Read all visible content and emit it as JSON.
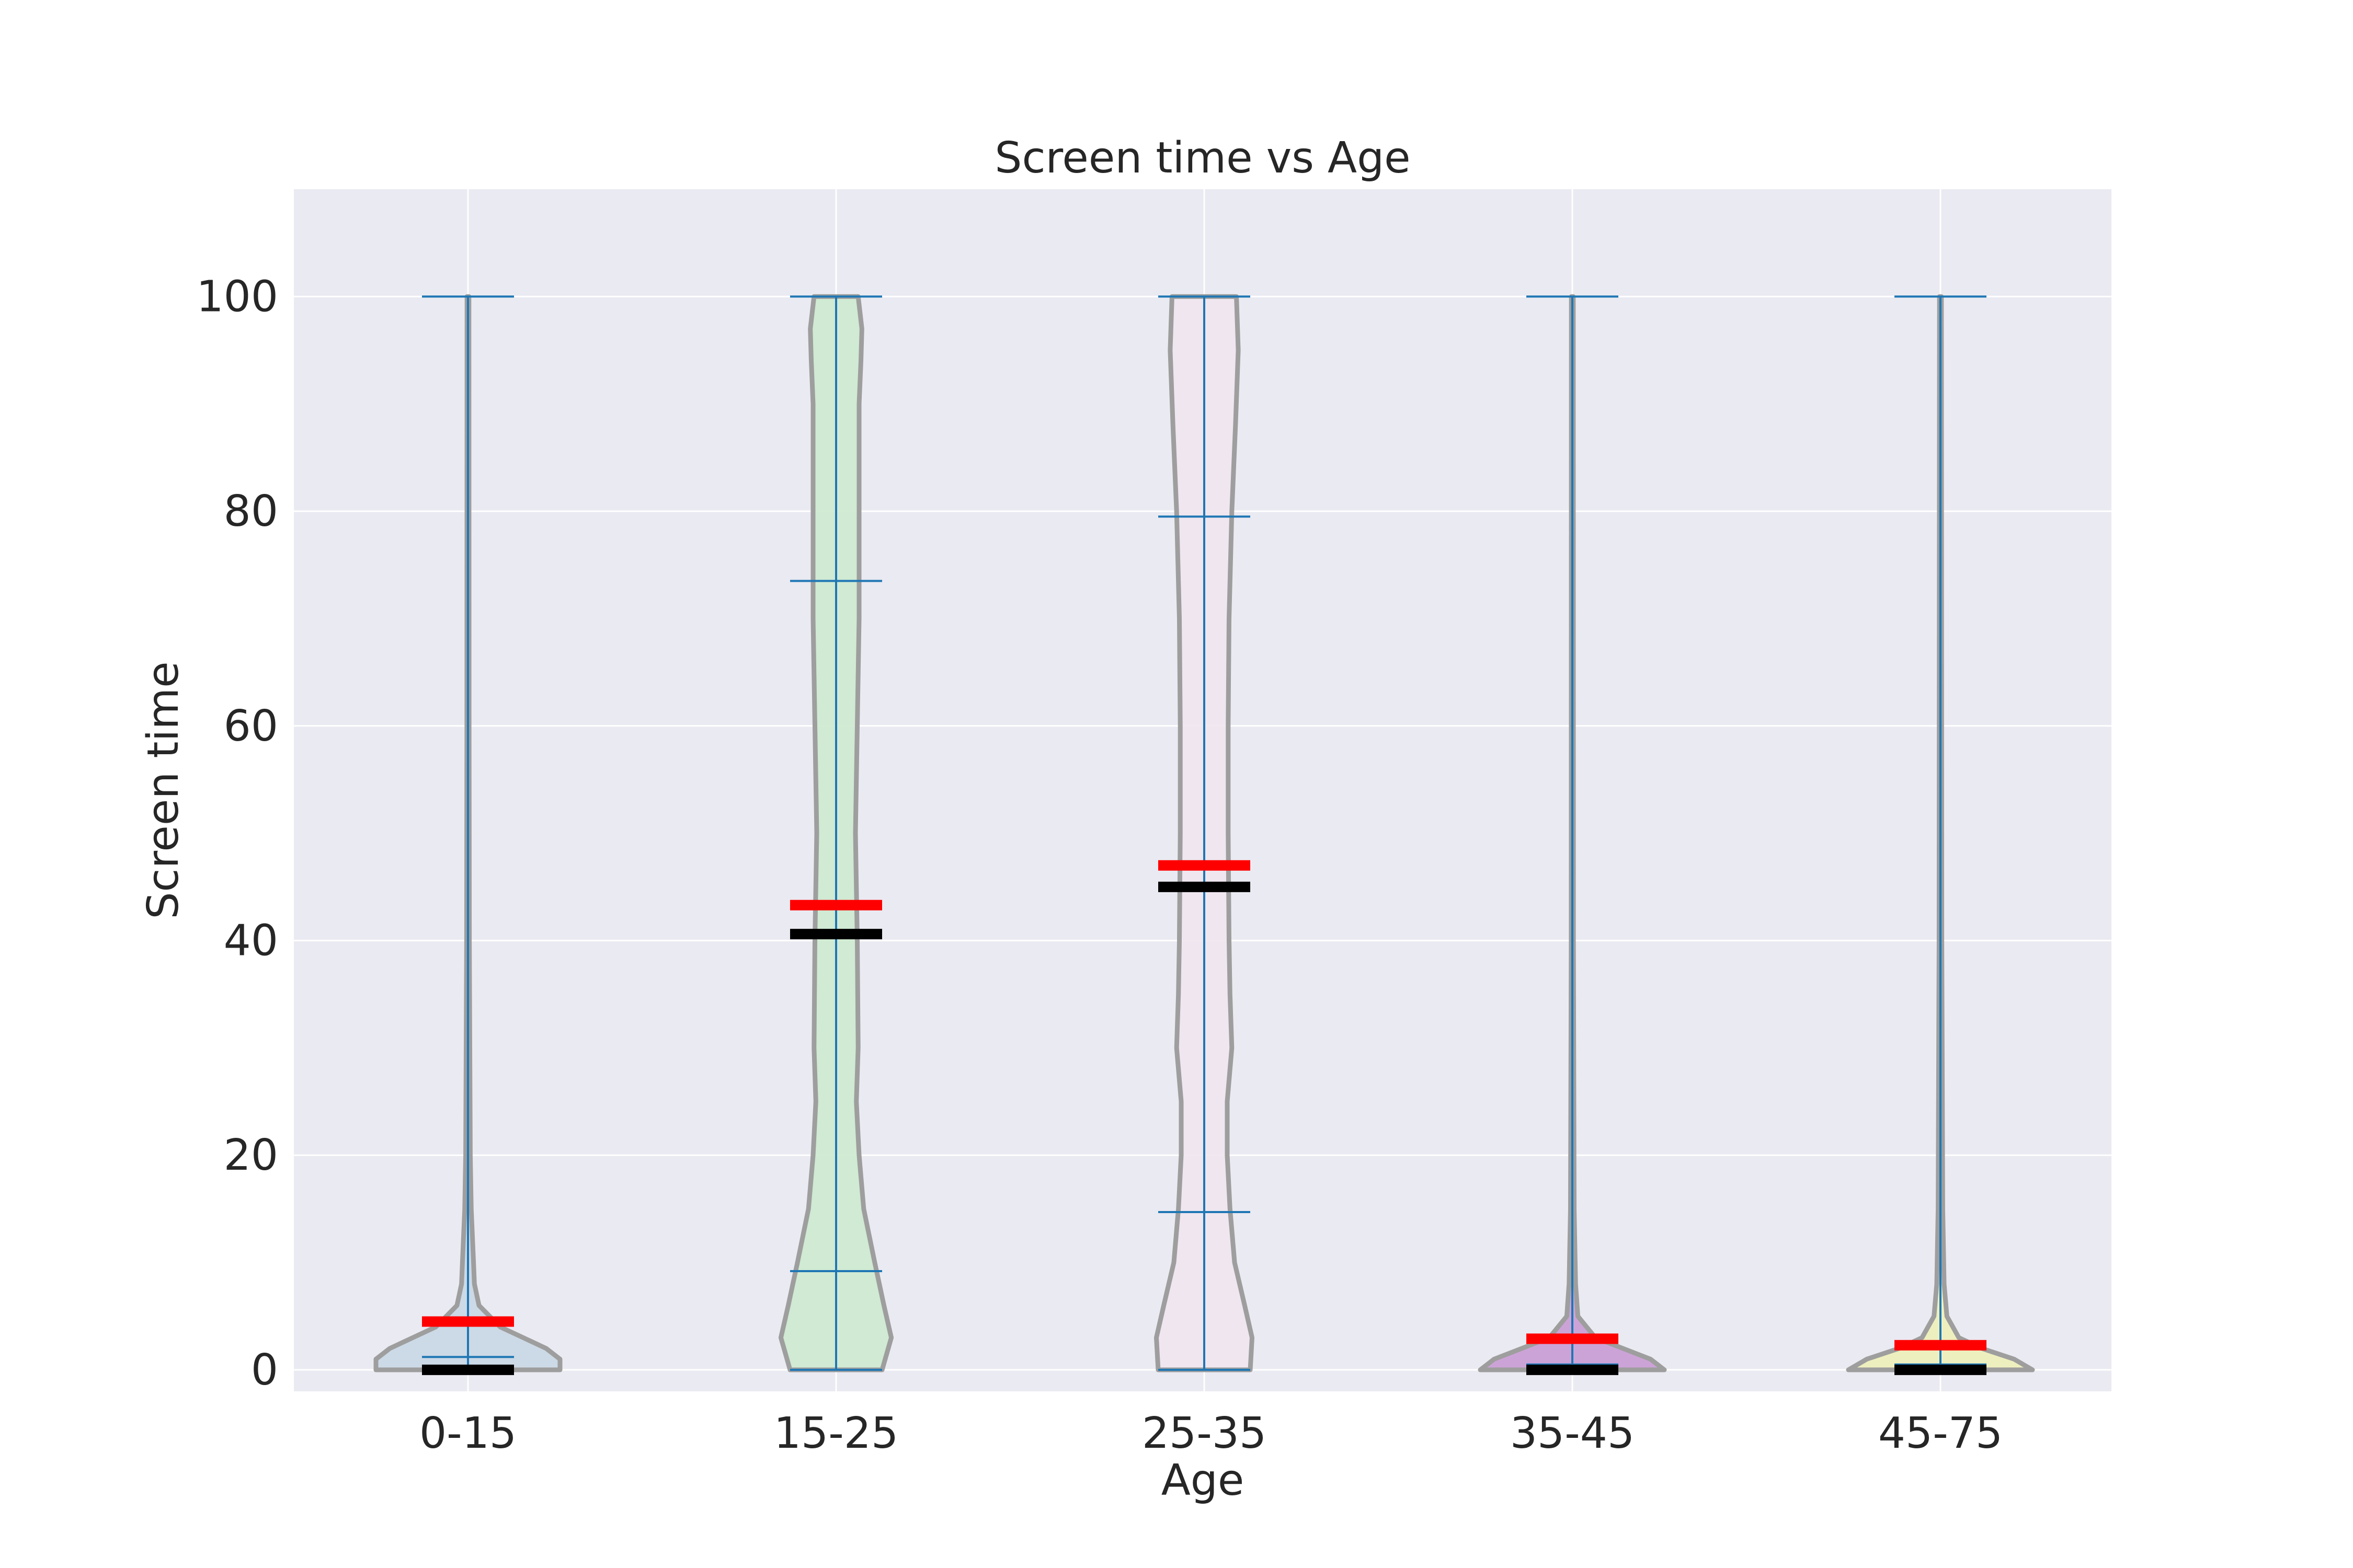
{
  "chart_data": {
    "type": "violin",
    "title": "Screen time vs Age",
    "xlabel": "Age",
    "ylabel": "Screen time",
    "ylim": [
      -2,
      110
    ],
    "yticks": [
      0,
      20,
      40,
      60,
      80,
      100
    ],
    "grid": true,
    "categories": [
      "0-15",
      "15-25",
      "25-35",
      "35-45",
      "45-75"
    ],
    "colors": {
      "background": "#eaeaf2",
      "grid": "#ffffff",
      "violin_edge": "#9e9e9e",
      "stats_lines": "#1f77b4",
      "mean_marker": "#ff0000",
      "median_marker": "#000000"
    },
    "series": [
      {
        "category": "0-15",
        "fill": "#c9d7e4",
        "min": 0,
        "max": 100,
        "quartile_low": 0,
        "quartile_high": 1.2,
        "mean": 4.5,
        "median": 0,
        "density": [
          [
            0,
            1.0
          ],
          [
            1,
            1.0
          ],
          [
            2,
            0.85
          ],
          [
            3,
            0.6
          ],
          [
            4,
            0.35
          ],
          [
            6,
            0.12
          ],
          [
            8,
            0.07
          ],
          [
            10,
            0.06
          ],
          [
            15,
            0.035
          ],
          [
            20,
            0.025
          ],
          [
            40,
            0.015
          ],
          [
            60,
            0.012
          ],
          [
            100,
            0.01
          ]
        ]
      },
      {
        "category": "15-25",
        "fill": "#cdeacf",
        "min": 0,
        "max": 100,
        "quartile_low": 9.2,
        "quartile_high": 73.5,
        "mean": 43.3,
        "median": 40.6,
        "density": [
          [
            0,
            0.5
          ],
          [
            3,
            0.6
          ],
          [
            6,
            0.52
          ],
          [
            10,
            0.42
          ],
          [
            15,
            0.3
          ],
          [
            20,
            0.25
          ],
          [
            25,
            0.22
          ],
          [
            30,
            0.24
          ],
          [
            40,
            0.23
          ],
          [
            50,
            0.21
          ],
          [
            60,
            0.23
          ],
          [
            70,
            0.25
          ],
          [
            80,
            0.25
          ],
          [
            90,
            0.25
          ],
          [
            94,
            0.27
          ],
          [
            97,
            0.28
          ],
          [
            100,
            0.24
          ]
        ]
      },
      {
        "category": "25-35",
        "fill": "#f0e6ee",
        "min": 0,
        "max": 100,
        "quartile_low": 14.7,
        "quartile_high": 79.5,
        "mean": 47.0,
        "median": 45.0,
        "density": [
          [
            0,
            0.5
          ],
          [
            3,
            0.52
          ],
          [
            6,
            0.44
          ],
          [
            10,
            0.33
          ],
          [
            15,
            0.28
          ],
          [
            20,
            0.25
          ],
          [
            25,
            0.25
          ],
          [
            30,
            0.3
          ],
          [
            35,
            0.28
          ],
          [
            40,
            0.27
          ],
          [
            50,
            0.26
          ],
          [
            60,
            0.26
          ],
          [
            70,
            0.27
          ],
          [
            80,
            0.3
          ],
          [
            88,
            0.34
          ],
          [
            95,
            0.37
          ],
          [
            100,
            0.35
          ]
        ]
      },
      {
        "category": "35-45",
        "fill": "#c99bd4",
        "min": 0,
        "max": 100,
        "quartile_low": 0,
        "quartile_high": 0.5,
        "mean": 2.9,
        "median": 0,
        "density": [
          [
            0,
            1.0
          ],
          [
            1,
            0.85
          ],
          [
            2,
            0.55
          ],
          [
            3,
            0.25
          ],
          [
            5,
            0.06
          ],
          [
            8,
            0.035
          ],
          [
            15,
            0.02
          ],
          [
            40,
            0.012
          ],
          [
            100,
            0.01
          ]
        ]
      },
      {
        "category": "45-75",
        "fill": "#eef0b8",
        "min": 0,
        "max": 100,
        "quartile_low": 0,
        "quartile_high": 0.5,
        "mean": 2.3,
        "median": 0,
        "density": [
          [
            0,
            1.0
          ],
          [
            1,
            0.8
          ],
          [
            2,
            0.45
          ],
          [
            3,
            0.2
          ],
          [
            5,
            0.07
          ],
          [
            8,
            0.04
          ],
          [
            15,
            0.025
          ],
          [
            40,
            0.015
          ],
          [
            100,
            0.01
          ]
        ]
      }
    ]
  }
}
